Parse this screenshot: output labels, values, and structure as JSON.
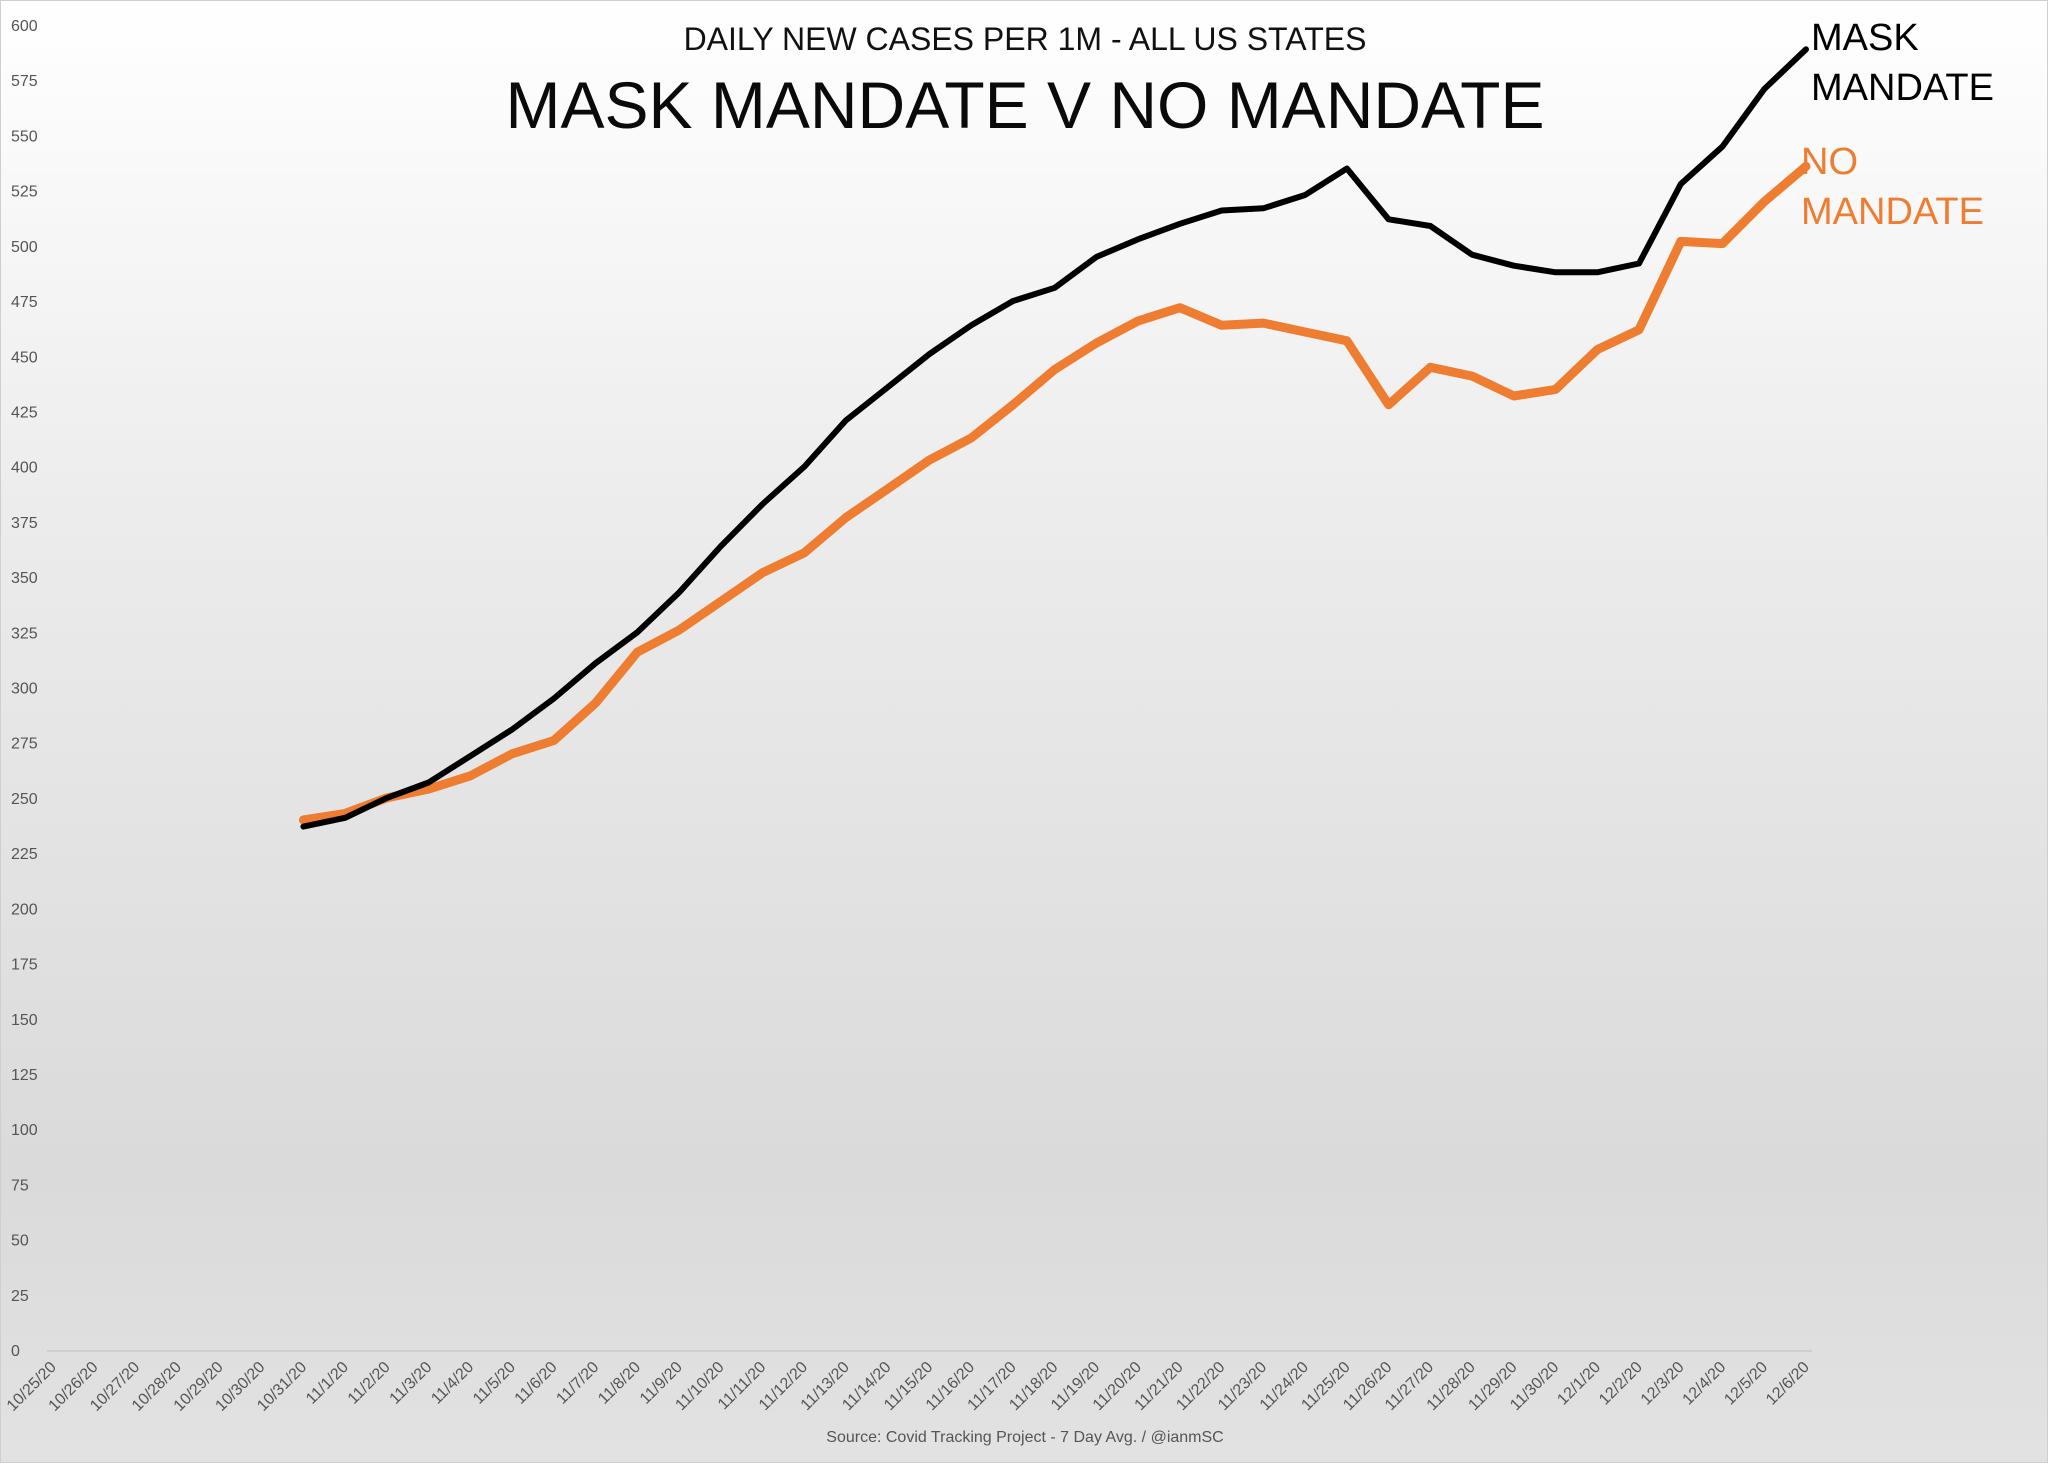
{
  "chart_data": {
    "type": "line",
    "subtitle": "DAILY NEW CASES PER 1M - ALL US STATES",
    "title": "MASK MANDATE V NO MANDATE",
    "source": "Source: Covid Tracking Project - 7 Day Avg. / @ianmSC",
    "ylim": [
      0,
      600
    ],
    "yticks": [
      0,
      25,
      50,
      75,
      100,
      125,
      150,
      175,
      200,
      225,
      250,
      275,
      300,
      325,
      350,
      375,
      400,
      425,
      450,
      475,
      500,
      525,
      550,
      575,
      600
    ],
    "grid": false,
    "categories": [
      "10/25/20",
      "10/26/20",
      "10/27/20",
      "10/28/20",
      "10/29/20",
      "10/30/20",
      "10/31/20",
      "11/1/20",
      "11/2/20",
      "11/3/20",
      "11/4/20",
      "11/5/20",
      "11/6/20",
      "11/7/20",
      "11/8/20",
      "11/9/20",
      "11/10/20",
      "11/11/20",
      "11/12/20",
      "11/13/20",
      "11/14/20",
      "11/15/20",
      "11/16/20",
      "11/17/20",
      "11/18/20",
      "11/19/20",
      "11/20/20",
      "11/21/20",
      "11/22/20",
      "11/23/20",
      "11/24/20",
      "11/25/20",
      "11/26/20",
      "11/27/20",
      "11/28/20",
      "11/29/20",
      "11/30/20",
      "12/1/20",
      "12/2/20",
      "12/3/20",
      "12/4/20",
      "12/5/20",
      "12/6/20"
    ],
    "series": [
      {
        "name": "MASK MANDATE",
        "color": "#000000",
        "values": [
          null,
          null,
          null,
          null,
          null,
          null,
          237,
          241,
          250,
          257,
          269,
          281,
          295,
          311,
          325,
          343,
          364,
          383,
          400,
          421,
          436,
          451,
          464,
          475,
          481,
          495,
          503,
          510,
          516,
          517,
          523,
          535,
          512,
          509,
          496,
          491,
          488,
          488,
          492,
          528,
          545,
          571,
          589
        ]
      },
      {
        "name": "NO MANDATE",
        "color": "#ee7d31",
        "values": [
          null,
          null,
          null,
          null,
          null,
          null,
          240,
          243,
          250,
          254,
          260,
          270,
          276,
          293,
          316,
          326,
          339,
          352,
          361,
          377,
          390,
          403,
          413,
          428,
          444,
          456,
          466,
          472,
          464,
          465,
          461,
          457,
          428,
          445,
          441,
          432,
          435,
          453,
          462,
          502,
          501,
          520,
          536
        ]
      }
    ]
  }
}
